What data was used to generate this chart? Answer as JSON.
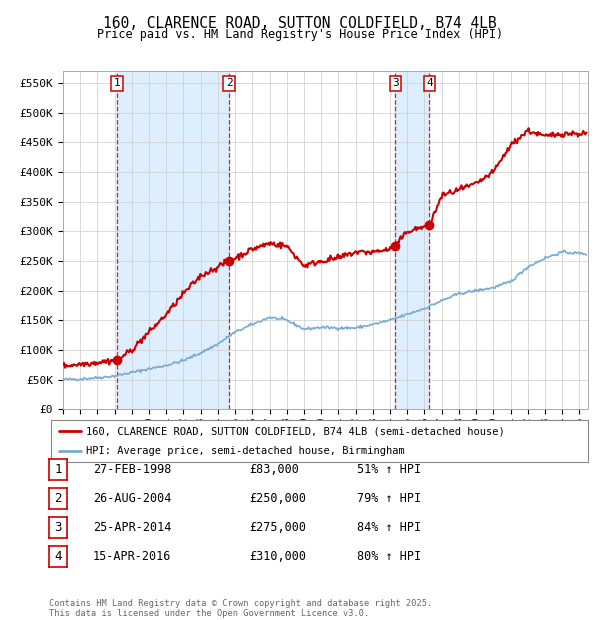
{
  "title_line1": "160, CLARENCE ROAD, SUTTON COLDFIELD, B74 4LB",
  "title_line2": "Price paid vs. HM Land Registry's House Price Index (HPI)",
  "ylabel_ticks": [
    "£0",
    "£50K",
    "£100K",
    "£150K",
    "£200K",
    "£250K",
    "£300K",
    "£350K",
    "£400K",
    "£450K",
    "£500K",
    "£550K"
  ],
  "ytick_values": [
    0,
    50000,
    100000,
    150000,
    200000,
    250000,
    300000,
    350000,
    400000,
    450000,
    500000,
    550000
  ],
  "xmin": 1995.0,
  "xmax": 2025.5,
  "ymin": 0,
  "ymax": 570000,
  "sale_dates": [
    1998.15,
    2004.65,
    2014.31,
    2016.29
  ],
  "sale_prices": [
    83000,
    250000,
    275000,
    310000
  ],
  "sale_labels": [
    "1",
    "2",
    "3",
    "4"
  ],
  "footnote": "Contains HM Land Registry data © Crown copyright and database right 2025.\nThis data is licensed under the Open Government Licence v3.0.",
  "legend_line1": "160, CLARENCE ROAD, SUTTON COLDFIELD, B74 4LB (semi-detached house)",
  "legend_line2": "HPI: Average price, semi-detached house, Birmingham",
  "table_rows": [
    [
      "1",
      "27-FEB-1998",
      "£83,000",
      "51% ↑ HPI"
    ],
    [
      "2",
      "26-AUG-2004",
      "£250,000",
      "79% ↑ HPI"
    ],
    [
      "3",
      "25-APR-2014",
      "£275,000",
      "84% ↑ HPI"
    ],
    [
      "4",
      "15-APR-2016",
      "£310,000",
      "80% ↑ HPI"
    ]
  ],
  "hpi_color": "#7aaad0",
  "sale_color": "#cc0000",
  "vline_color": "#cc0000",
  "shade_color": "#ddeeff",
  "background_color": "#ffffff",
  "hpi_keypoints_x": [
    1995.0,
    1996.0,
    1997.0,
    1998.0,
    1999.0,
    2000.0,
    2001.0,
    2002.0,
    2003.0,
    2004.0,
    2005.0,
    2006.0,
    2007.0,
    2008.0,
    2009.0,
    2010.0,
    2011.0,
    2012.0,
    2013.0,
    2014.0,
    2015.0,
    2016.0,
    2017.0,
    2018.0,
    2019.0,
    2020.0,
    2021.0,
    2022.0,
    2023.0,
    2024.0,
    2025.4
  ],
  "hpi_keypoints_y": [
    50000,
    51000,
    53000,
    56000,
    62000,
    68000,
    74000,
    82000,
    95000,
    110000,
    130000,
    143000,
    155000,
    150000,
    135000,
    138000,
    137000,
    137000,
    143000,
    150000,
    160000,
    170000,
    183000,
    195000,
    200000,
    205000,
    215000,
    240000,
    255000,
    265000,
    262000
  ],
  "red_keypoints_x": [
    1995.0,
    1996.0,
    1997.0,
    1998.15,
    1999.0,
    2000.0,
    2001.0,
    2002.0,
    2003.0,
    2004.0,
    2004.65,
    2005.0,
    2006.0,
    2007.0,
    2008.0,
    2009.0,
    2010.0,
    2011.0,
    2012.0,
    2013.0,
    2014.0,
    2014.31,
    2015.0,
    2016.29,
    2017.0,
    2018.0,
    2019.0,
    2020.0,
    2021.0,
    2022.0,
    2023.0,
    2024.0,
    2025.4
  ],
  "red_keypoints_y": [
    73000,
    76000,
    79000,
    83000,
    100000,
    130000,
    160000,
    195000,
    225000,
    240000,
    250000,
    255000,
    270000,
    280000,
    275000,
    242000,
    250000,
    255000,
    265000,
    265000,
    270000,
    275000,
    300000,
    310000,
    360000,
    370000,
    380000,
    400000,
    445000,
    470000,
    460000,
    465000,
    465000
  ]
}
